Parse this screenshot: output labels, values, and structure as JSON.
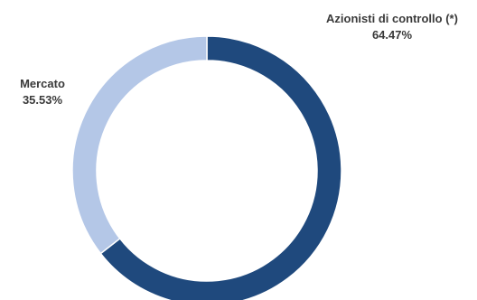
{
  "chart_data": {
    "type": "pie",
    "style": "donut",
    "slices": [
      {
        "label": "Azionisti di controllo (*)",
        "value": 64.47,
        "value_label": "64.47%",
        "color": "#1f497d"
      },
      {
        "label": "Mercato",
        "value": 35.53,
        "value_label": "35.53%",
        "color": "#b4c7e7"
      }
    ],
    "slice_border_color": "#ffffff",
    "start_angle": "top, clockwise"
  }
}
